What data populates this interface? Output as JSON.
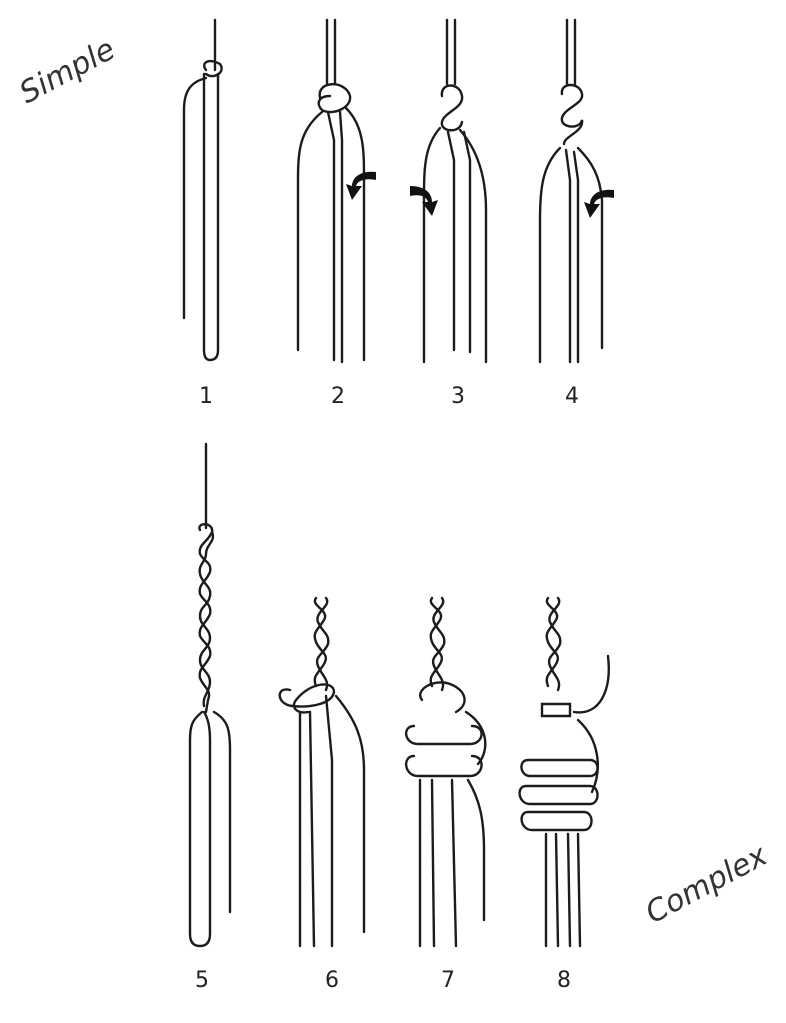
{
  "tags": {
    "simple": "Simple",
    "complex": "Complex"
  },
  "steps": [
    {
      "label": "1"
    },
    {
      "label": "2"
    },
    {
      "label": "3"
    },
    {
      "label": "4"
    },
    {
      "label": "5"
    },
    {
      "label": "6"
    },
    {
      "label": "7"
    },
    {
      "label": "8"
    }
  ]
}
